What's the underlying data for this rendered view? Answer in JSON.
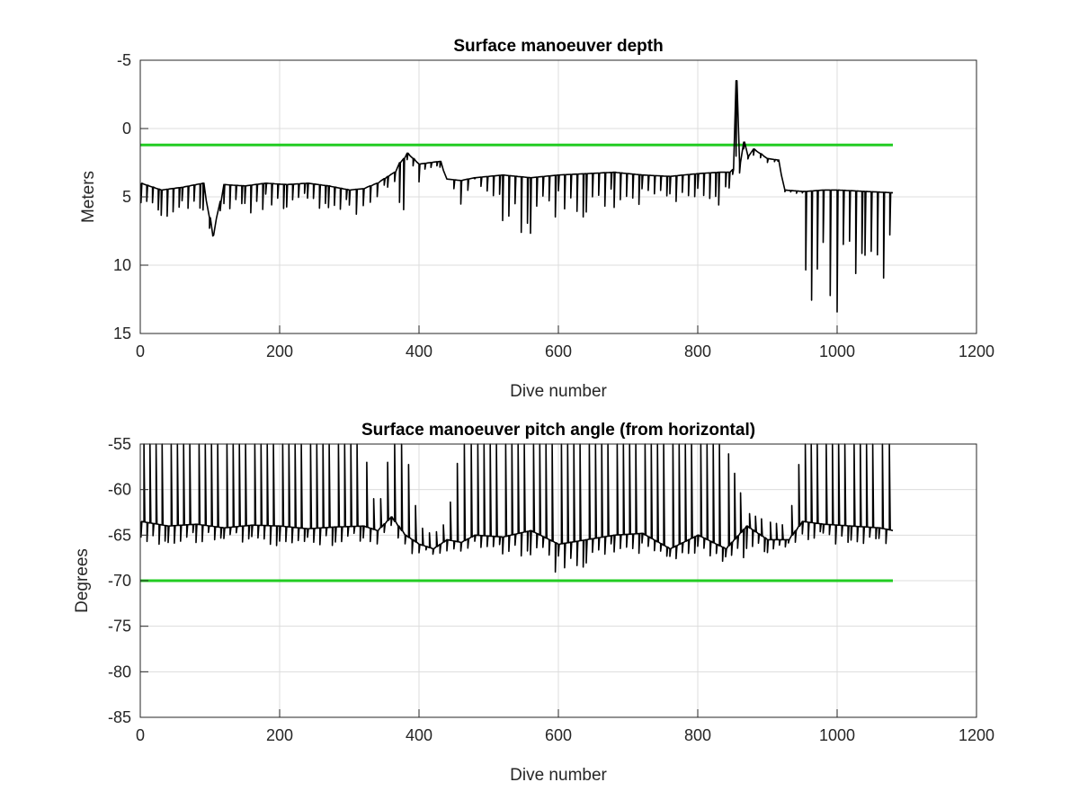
{
  "chart_data": [
    {
      "type": "line",
      "title": "Surface manoeuver depth",
      "xlabel": "Dive number",
      "ylabel": "Meters",
      "xlim": [
        0,
        1200
      ],
      "ylim": [
        -5,
        15
      ],
      "y_reversed": true,
      "xticks": [
        "0",
        "200",
        "400",
        "600",
        "800",
        "1000",
        "1200"
      ],
      "xtick_values": [
        0,
        200,
        400,
        600,
        800,
        1000,
        1200
      ],
      "yticks": [
        "-5",
        "0",
        "5",
        "10",
        "15"
      ],
      "ytick_values": [
        -5,
        0,
        5,
        10,
        15
      ],
      "grid": true,
      "series": [
        {
          "color": "#000000",
          "x": [
            1,
            30,
            60,
            90,
            104,
            120,
            150,
            180,
            210,
            240,
            270,
            300,
            320,
            340,
            355,
            365,
            372,
            378,
            383,
            400,
            430,
            440,
            460,
            480,
            520,
            560,
            600,
            640,
            680,
            720,
            760,
            800,
            830,
            845,
            850,
            855,
            860,
            866,
            872,
            880,
            900,
            915,
            925,
            950,
            955,
            980,
            1000,
            1040,
            1080
          ],
          "y": [
            4.0,
            4.5,
            4.3,
            4.0,
            7.8,
            4.1,
            4.2,
            4.0,
            4.1,
            4.0,
            4.2,
            4.5,
            4.4,
            4.0,
            3.5,
            3.2,
            2.5,
            2.2,
            1.8,
            2.6,
            2.4,
            3.7,
            3.8,
            3.6,
            3.4,
            3.6,
            3.4,
            3.3,
            3.2,
            3.4,
            3.5,
            3.3,
            3.2,
            3.2,
            3.0,
            -3.5,
            2.5,
            1.0,
            2.0,
            1.5,
            2.2,
            2.3,
            4.5,
            4.6,
            4.6,
            4.5,
            4.5,
            4.6,
            4.7
          ],
          "y_min": [
            6.5,
            6.8,
            6.2,
            6.4,
            7.9,
            6.0,
            6.3,
            6.1,
            6.3,
            6.0,
            6.2,
            6.5,
            6.3,
            5.0,
            4.5,
            4.0,
            6.5,
            6.6,
            3.0,
            4.0,
            3.0,
            3.7,
            6.0,
            3.8,
            7.0,
            8.2,
            6.5,
            6.6,
            6.0,
            5.5,
            5.8,
            5.5,
            6.0,
            4.5,
            3.5,
            3.0,
            4.0,
            2.0,
            2.5,
            2.0,
            2.5,
            2.5,
            4.8,
            4.8,
            13.5,
            13.2,
            14.6,
            11.0,
            11.2
          ]
        }
      ],
      "reference_lines": [
        {
          "color": "#22cc22",
          "y": 1.2,
          "x_range": [
            0,
            1080
          ]
        }
      ]
    },
    {
      "type": "line",
      "title": "Surface manoeuver pitch angle (from horizontal)",
      "xlabel": "Dive number",
      "ylabel": "Degrees",
      "xlim": [
        0,
        1200
      ],
      "ylim": [
        -85,
        -55
      ],
      "y_reversed": false,
      "xticks": [
        "0",
        "200",
        "400",
        "600",
        "800",
        "1000",
        "1200"
      ],
      "xtick_values": [
        0,
        200,
        400,
        600,
        800,
        1000,
        1200
      ],
      "yticks": [
        "-55",
        "-60",
        "-65",
        "-70",
        "-75",
        "-80",
        "-85"
      ],
      "ytick_values": [
        -55,
        -60,
        -65,
        -70,
        -75,
        -80,
        -85
      ],
      "grid": true,
      "series": [
        {
          "color": "#000000",
          "x": [
            1,
            40,
            80,
            120,
            160,
            200,
            240,
            280,
            320,
            340,
            360,
            380,
            400,
            420,
            440,
            460,
            480,
            520,
            560,
            600,
            640,
            680,
            720,
            760,
            800,
            840,
            870,
            900,
            930,
            950,
            980,
            1020,
            1060,
            1080
          ],
          "y": [
            -63.5,
            -64.0,
            -63.8,
            -64.2,
            -63.9,
            -64.0,
            -64.3,
            -64.1,
            -64.0,
            -64.5,
            -63.0,
            -65.0,
            -66.0,
            -66.5,
            -65.5,
            -65.8,
            -65.0,
            -65.2,
            -64.5,
            -66.0,
            -65.5,
            -65.0,
            -64.8,
            -66.5,
            -65.0,
            -66.5,
            -64.0,
            -65.5,
            -65.5,
            -63.5,
            -63.8,
            -64.0,
            -64.2,
            -64.5
          ],
          "y_min": [
            -66.5,
            -66.2,
            -66.0,
            -65.8,
            -66.0,
            -66.2,
            -66.0,
            -66.3,
            -66.0,
            -66.0,
            -65.5,
            -67.5,
            -67.0,
            -67.5,
            -67.2,
            -67.0,
            -66.8,
            -67.2,
            -67.5,
            -69.5,
            -68.5,
            -67.0,
            -67.0,
            -68.0,
            -67.5,
            -68.0,
            -67.5,
            -67.0,
            -66.5,
            -66.0,
            -66.0,
            -66.2,
            -66.0,
            -66.0
          ],
          "y_max": [
            -55,
            -55,
            -55,
            -55,
            -55,
            -55,
            -55,
            -55,
            -55,
            -63.0,
            -55,
            -55,
            -64.0,
            -65.0,
            -63.5,
            -55,
            -55,
            -55,
            -55,
            -55,
            -55,
            -55,
            -55,
            -55,
            -55,
            -55,
            -62.5,
            -63.5,
            -64.0,
            -55,
            -55,
            -55,
            -55,
            -55
          ]
        }
      ],
      "reference_lines": [
        {
          "color": "#22cc22",
          "y": -70,
          "x_range": [
            0,
            1080
          ]
        }
      ]
    }
  ]
}
